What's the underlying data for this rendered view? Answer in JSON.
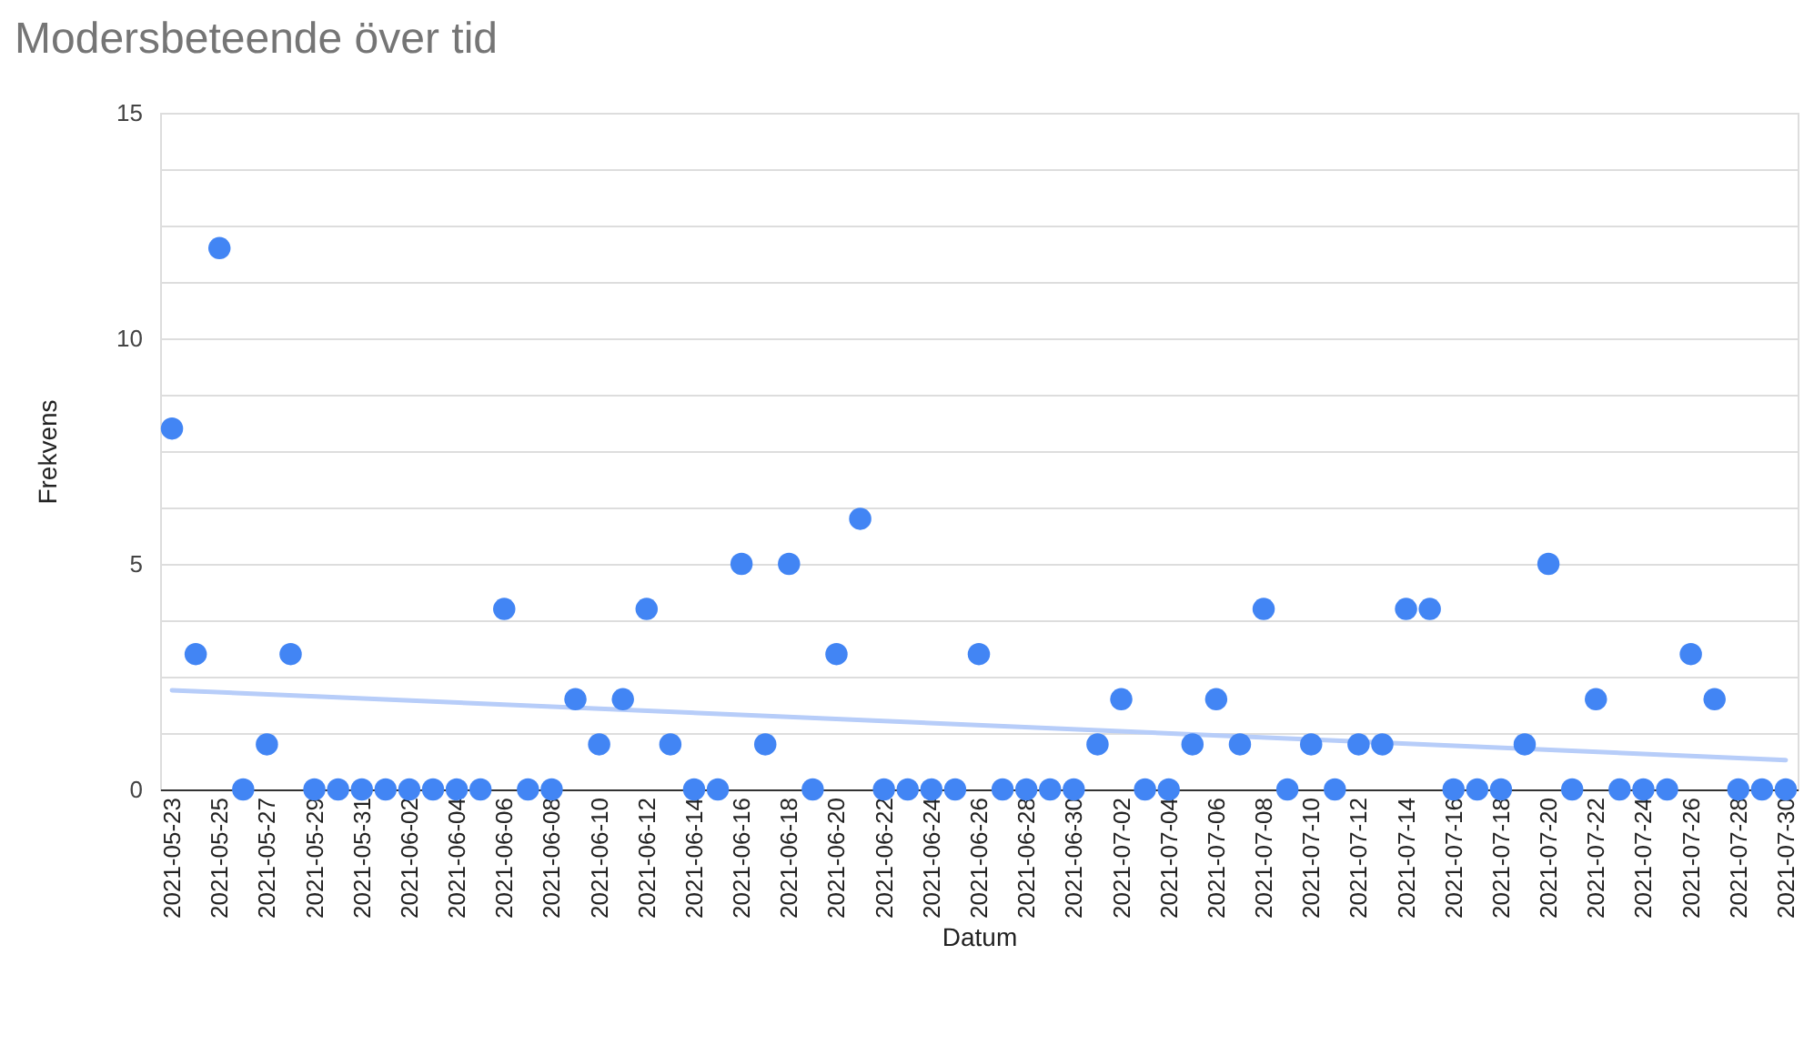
{
  "chart_data": {
    "type": "scatter",
    "title": "Modersbeteende över tid",
    "xlabel": "Datum",
    "ylabel": "Frekvens",
    "grid": "y",
    "marker": "circle",
    "x": [
      "2021-05-23",
      "2021-05-24",
      "2021-05-25",
      "2021-05-26",
      "2021-05-27",
      "2021-05-28",
      "2021-05-29",
      "2021-05-30",
      "2021-05-31",
      "2021-06-01",
      "2021-06-02",
      "2021-06-03",
      "2021-06-04",
      "2021-06-05",
      "2021-06-06",
      "2021-06-07",
      "2021-06-08",
      "2021-06-09",
      "2021-06-10",
      "2021-06-11",
      "2021-06-12",
      "2021-06-13",
      "2021-06-14",
      "2021-06-15",
      "2021-06-16",
      "2021-06-17",
      "2021-06-18",
      "2021-06-19",
      "2021-06-20",
      "2021-06-21",
      "2021-06-22",
      "2021-06-23",
      "2021-06-24",
      "2021-06-25",
      "2021-06-26",
      "2021-06-27",
      "2021-06-28",
      "2021-06-29",
      "2021-06-30",
      "2021-07-01",
      "2021-07-02",
      "2021-07-03",
      "2021-07-04",
      "2021-07-05",
      "2021-07-06",
      "2021-07-07",
      "2021-07-08",
      "2021-07-09",
      "2021-07-10",
      "2021-07-11",
      "2021-07-12",
      "2021-07-13",
      "2021-07-14",
      "2021-07-15",
      "2021-07-16",
      "2021-07-17",
      "2021-07-18",
      "2021-07-19",
      "2021-07-20",
      "2021-07-21",
      "2021-07-22",
      "2021-07-23",
      "2021-07-24",
      "2021-07-25",
      "2021-07-26",
      "2021-07-27",
      "2021-07-28",
      "2021-07-29",
      "2021-07-30"
    ],
    "series": [
      {
        "type": "scatter",
        "color": "#4285f4",
        "values": [
          8,
          3,
          12,
          0,
          1,
          3,
          0,
          0,
          0,
          0,
          0,
          0,
          0,
          0,
          4,
          0,
          0,
          2,
          1,
          2,
          4,
          1,
          0,
          0,
          5,
          1,
          5,
          0,
          3,
          6,
          0,
          0,
          0,
          0,
          3,
          0,
          0,
          0,
          0,
          1,
          2,
          0,
          0,
          1,
          2,
          1,
          4,
          0,
          1,
          0,
          1,
          1,
          4,
          4,
          0,
          0,
          0,
          1,
          5,
          0,
          2,
          0,
          0,
          0,
          3,
          2,
          0,
          0,
          0
        ]
      },
      {
        "type": "line",
        "marker": "none",
        "color": "#b7cdf9",
        "x": [
          "2021-05-23",
          "2021-07-30"
        ],
        "values": [
          2.2,
          0.65
        ]
      }
    ],
    "xlim": [
      "2021-05-22T12:00",
      "2021-07-30T12:00"
    ],
    "xticks": [
      "2021-05-23",
      "2021-05-25",
      "2021-05-27",
      "2021-05-29",
      "2021-05-31",
      "2021-06-02",
      "2021-06-04",
      "2021-06-06",
      "2021-06-08",
      "2021-06-10",
      "2021-06-12",
      "2021-06-14",
      "2021-06-16",
      "2021-06-18",
      "2021-06-20",
      "2021-06-22",
      "2021-06-24",
      "2021-06-26",
      "2021-06-28",
      "2021-06-30",
      "2021-07-02",
      "2021-07-04",
      "2021-07-06",
      "2021-07-08",
      "2021-07-10",
      "2021-07-12",
      "2021-07-14",
      "2021-07-16",
      "2021-07-18",
      "2021-07-20",
      "2021-07-22",
      "2021-07-24",
      "2021-07-26",
      "2021-07-28",
      "2021-07-30"
    ],
    "ylim": [
      0,
      15
    ],
    "yticks": [
      0,
      {
        "value": 1.25,
        "label": null
      },
      {
        "value": 2.5,
        "label": null
      },
      {
        "value": 3.75,
        "label": null
      },
      5,
      {
        "value": 6.25,
        "label": null
      },
      {
        "value": 7.5,
        "label": null
      },
      {
        "value": 8.75,
        "label": null
      },
      10,
      {
        "value": 11.25,
        "label": null
      },
      {
        "value": 12.5,
        "label": null
      },
      {
        "value": 13.75,
        "label": null
      },
      15
    ]
  }
}
